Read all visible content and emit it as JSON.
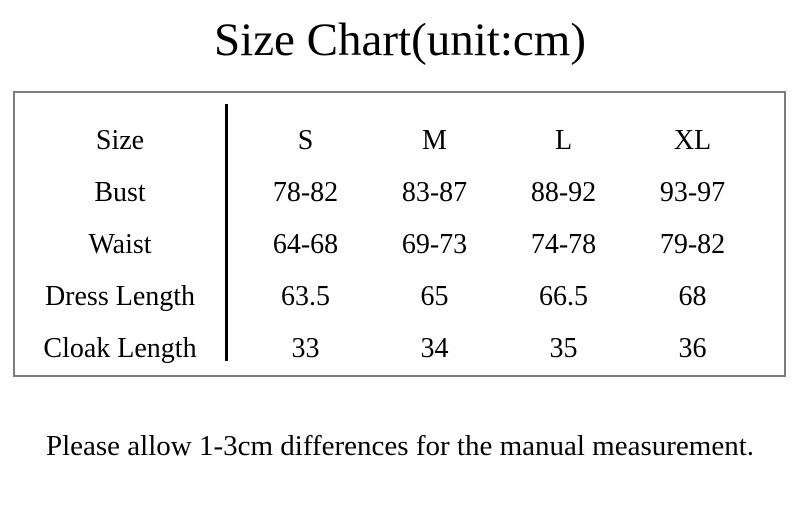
{
  "title": "Size Chart(unit:cm)",
  "table": {
    "header": {
      "label": "Size",
      "values": [
        "S",
        "M",
        "L",
        "XL"
      ]
    },
    "rows": [
      {
        "label": "Bust",
        "values": [
          "78-82",
          "83-87",
          "88-92",
          "93-97"
        ]
      },
      {
        "label": "Waist",
        "values": [
          "64-68",
          "69-73",
          "74-78",
          "79-82"
        ]
      },
      {
        "label": "Dress Length",
        "values": [
          "63.5",
          "65",
          "66.5",
          "68"
        ]
      },
      {
        "label": "Cloak Length",
        "values": [
          "33",
          "34",
          "35",
          "36"
        ]
      }
    ]
  },
  "footer_note": "Please allow 1-3cm differences for the manual measurement.",
  "colors": {
    "background": "#ffffff",
    "text": "#000000",
    "border": "#7d7d7d",
    "divider": "#000000"
  },
  "chart_data": {
    "type": "table",
    "title": "Size Chart(unit:cm)",
    "unit": "cm",
    "columns": [
      "Size",
      "S",
      "M",
      "L",
      "XL"
    ],
    "rows": [
      [
        "Bust",
        "78-82",
        "83-87",
        "88-92",
        "93-97"
      ],
      [
        "Waist",
        "64-68",
        "69-73",
        "74-78",
        "79-82"
      ],
      [
        "Dress Length",
        "63.5",
        "65",
        "66.5",
        "68"
      ],
      [
        "Cloak Length",
        "33",
        "34",
        "35",
        "36"
      ]
    ],
    "note": "Please allow 1-3cm differences for the manual measurement."
  }
}
